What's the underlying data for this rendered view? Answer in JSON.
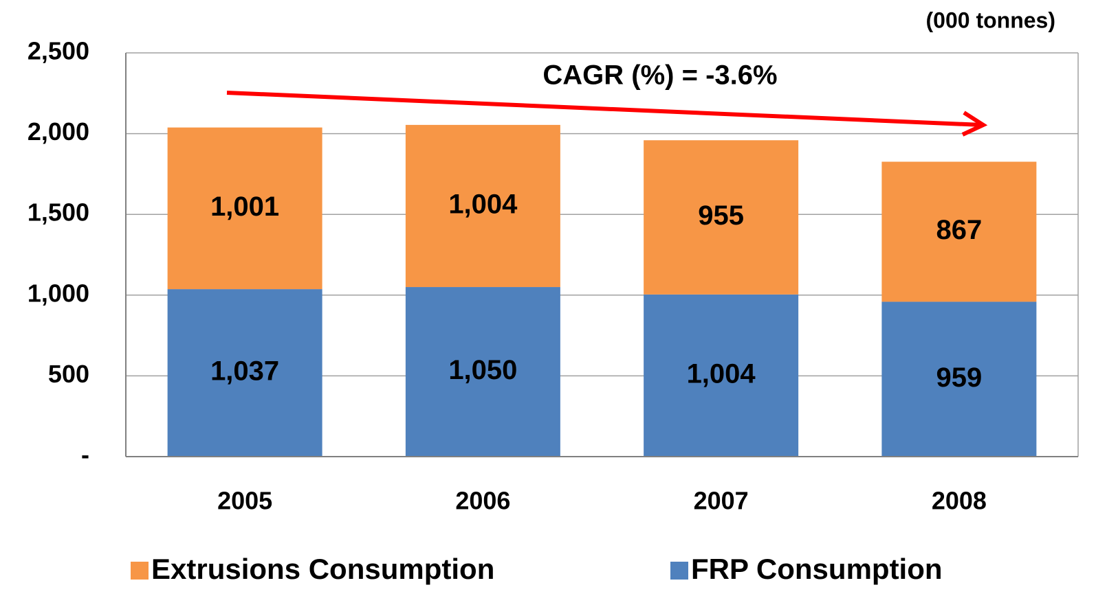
{
  "chart_data": {
    "type": "stacked_bar",
    "annotations": [
      {
        "text": "(000 tonnes)"
      },
      {
        "text": "CAGR (%) = -3.6%"
      }
    ],
    "categories": [
      "2005",
      "2006",
      "2007",
      "2008"
    ],
    "series": [
      {
        "name": "FRP Consumption",
        "color": "#4f81bd",
        "values": [
          1037,
          1050,
          1004,
          959
        ],
        "value_labels": [
          "1,037",
          "1,050",
          "1,004",
          "959"
        ]
      },
      {
        "name": "Extrusions Consumption",
        "color": "#f79646",
        "values": [
          1001,
          1004,
          955,
          867
        ],
        "value_labels": [
          "1,001",
          "1,004",
          "955",
          "867"
        ]
      }
    ],
    "ylim": [
      0,
      2500
    ],
    "yticks": [
      {
        "value": 0,
        "label": "-"
      },
      500,
      {
        "value": 1000,
        "label": "1,000"
      },
      {
        "value": 1500,
        "label": "1,500"
      },
      {
        "value": 2000,
        "label": "2,000"
      },
      {
        "value": 2500,
        "label": "2,500"
      }
    ],
    "grid": true,
    "legend": "bottom"
  }
}
